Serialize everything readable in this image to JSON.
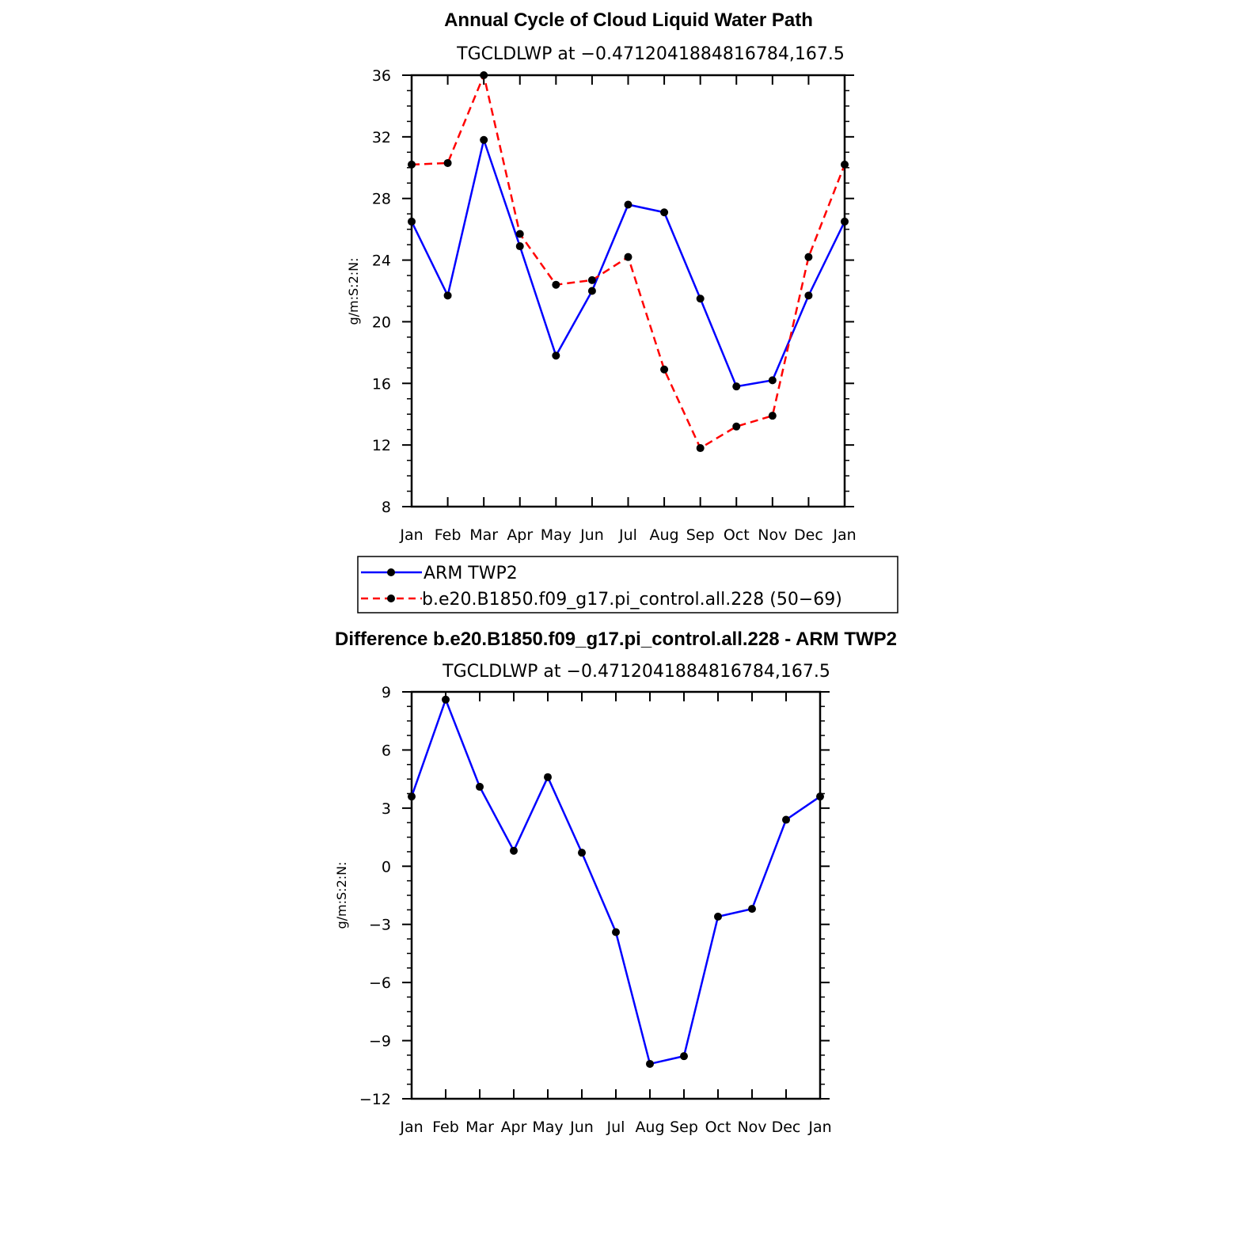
{
  "chart_data": [
    {
      "type": "line",
      "title": "Annual Cycle of Cloud Liquid Water Path",
      "subtitle": "TGCLDLWP at −0.4712041884816784,167.5",
      "ylabel": "g/m:S:2:N:",
      "xlabel": "",
      "ylim": [
        8,
        36
      ],
      "yticks": [
        8,
        12,
        16,
        20,
        24,
        28,
        32,
        36
      ],
      "categories": [
        "Jan",
        "Feb",
        "Mar",
        "Apr",
        "May",
        "Jun",
        "Jul",
        "Aug",
        "Sep",
        "Oct",
        "Nov",
        "Dec",
        "Jan"
      ],
      "series": [
        {
          "name": "ARM TWP2",
          "color": "#0000ff",
          "dash": "solid",
          "values": [
            26.5,
            21.7,
            31.8,
            24.9,
            17.8,
            22.0,
            27.6,
            27.1,
            21.5,
            15.8,
            16.2,
            21.7,
            26.5
          ]
        },
        {
          "name": "b.e20.B1850.f09_g17.pi_control.all.228 (50−69)",
          "color": "#ff0000",
          "dash": "dashed",
          "values": [
            30.2,
            30.3,
            36.0,
            25.7,
            22.4,
            22.7,
            24.2,
            16.9,
            11.8,
            13.2,
            13.9,
            24.2,
            30.2
          ]
        }
      ],
      "legend": {
        "position": "bottom",
        "entries": [
          "ARM TWP2",
          "b.e20.B1850.f09_g17.pi_control.all.228 (50−69)"
        ]
      }
    },
    {
      "type": "line",
      "title": "Difference b.e20.B1850.f09_g17.pi_control.all.228 - ARM TWP2",
      "subtitle": "TGCLDLWP at −0.4712041884816784,167.5",
      "ylabel": "g/m:S:2:N:",
      "xlabel": "",
      "ylim": [
        -12,
        9
      ],
      "yticks": [
        -12,
        -9,
        -6,
        -3,
        0,
        3,
        6,
        9
      ],
      "ytick_labels": [
        "−12",
        "−9",
        "−6",
        "−3",
        "0",
        "3",
        "6",
        "9"
      ],
      "categories": [
        "Jan",
        "Feb",
        "Mar",
        "Apr",
        "May",
        "Jun",
        "Jul",
        "Aug",
        "Sep",
        "Oct",
        "Nov",
        "Dec",
        "Jan"
      ],
      "series": [
        {
          "name": "Difference",
          "color": "#0000ff",
          "dash": "solid",
          "values": [
            3.6,
            8.6,
            4.1,
            0.8,
            4.6,
            0.7,
            -3.4,
            -10.2,
            -9.8,
            -2.6,
            -2.2,
            2.4,
            3.6
          ]
        }
      ]
    }
  ]
}
